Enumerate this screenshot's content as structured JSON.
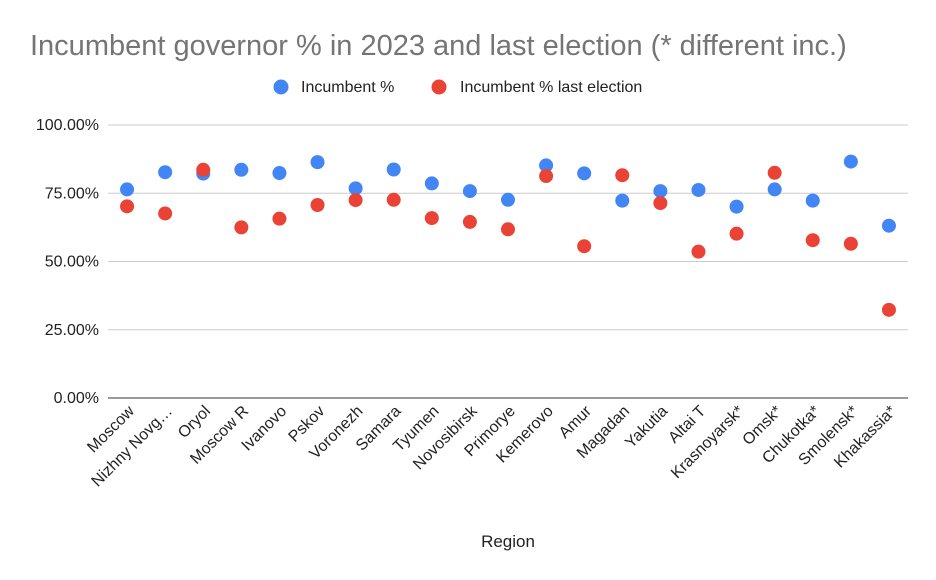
{
  "chart_data": {
    "type": "scatter",
    "title": "Incumbent governor % in 2023 and last election (* different inc.)",
    "xlabel": "Region",
    "ylabel": "",
    "ylim": [
      0,
      100
    ],
    "yticks": [
      "0.00%",
      "25.00%",
      "50.00%",
      "75.00%",
      "100.00%"
    ],
    "grid": true,
    "legend_position": "top",
    "categories": [
      "Moscow",
      "Nizhny Novg…",
      "Oryol",
      "Moscow R",
      "Ivanovo",
      "Pskov",
      "Voronezh",
      "Samara",
      "Tyumen",
      "Novosibirsk",
      "Primorye",
      "Kemerovo",
      "Amur",
      "Magadan",
      "Yakutia",
      "Altai T",
      "Krasnoyarsk*",
      "Omsk*",
      "Chukotka*",
      "Smolensk*",
      "Khakassia*"
    ],
    "series": [
      {
        "name": "Incumbent %",
        "color": "#4285f4",
        "values": [
          76.4,
          82.7,
          82.2,
          83.6,
          82.4,
          86.4,
          76.8,
          83.7,
          78.6,
          75.8,
          72.6,
          85.2,
          82.3,
          72.3,
          75.8,
          76.2,
          70.1,
          76.4,
          72.3,
          86.6,
          63.1
        ]
      },
      {
        "name": "Incumbent % last election",
        "color": "#ea4335",
        "values": [
          70.2,
          67.6,
          83.6,
          62.5,
          65.7,
          70.7,
          72.5,
          72.6,
          65.9,
          64.5,
          61.8,
          81.3,
          55.6,
          81.6,
          71.4,
          53.6,
          60.2,
          82.5,
          57.8,
          56.5,
          32.3
        ]
      }
    ]
  }
}
